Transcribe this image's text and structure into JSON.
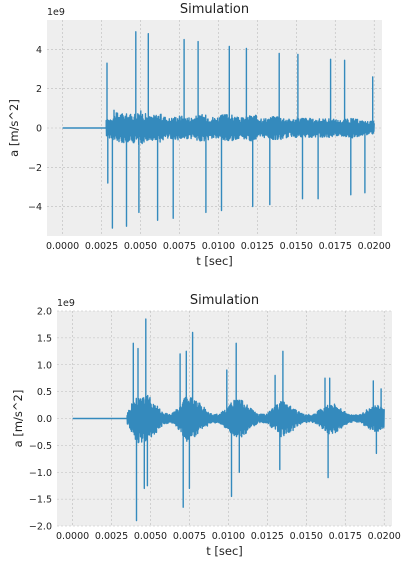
{
  "theme": {
    "plot_bg": "#eeeeee",
    "grid": "#bcbcbc",
    "line": "#348abd",
    "text": "#222222"
  },
  "chart_data": [
    {
      "type": "line",
      "title": "Simulation",
      "xlabel": "t [sec]",
      "ylabel": "a [m/s^2]",
      "y_offset_label": "1e9",
      "xlim": [
        -0.001,
        0.0205
      ],
      "ylim": [
        -5.5,
        5.5
      ],
      "xticks": [
        0.0,
        0.0025,
        0.005,
        0.0075,
        0.01,
        0.0125,
        0.015,
        0.0175,
        0.02
      ],
      "xtick_labels": [
        "0.0000",
        "0.0025",
        "0.0050",
        "0.0075",
        "0.0100",
        "0.0125",
        "0.0150",
        "0.0175",
        "0.0200"
      ],
      "yticks": [
        -4,
        -2,
        0,
        2,
        4
      ],
      "ytick_labels": [
        "−4",
        "−2",
        "0",
        "2",
        "4"
      ],
      "grid": true,
      "series": [
        {
          "units": "1e9 m/s^2",
          "baseline": {
            "x": [
              0.0,
              0.0028
            ],
            "y": [
              0,
              0
            ]
          },
          "envelope": [
            {
              "x": 0.0028,
              "amp": 0.4
            },
            {
              "x": 0.0035,
              "amp": 0.8
            },
            {
              "x": 0.0044,
              "amp": 0.7
            },
            {
              "x": 0.005,
              "amp": 0.9
            },
            {
              "x": 0.0056,
              "amp": 0.6
            },
            {
              "x": 0.0062,
              "amp": 0.75
            },
            {
              "x": 0.0068,
              "amp": 0.5
            },
            {
              "x": 0.0075,
              "amp": 0.65
            },
            {
              "x": 0.0082,
              "amp": 0.55
            },
            {
              "x": 0.009,
              "amp": 0.7
            },
            {
              "x": 0.0098,
              "amp": 0.55
            },
            {
              "x": 0.0106,
              "amp": 0.75
            },
            {
              "x": 0.0114,
              "amp": 0.5
            },
            {
              "x": 0.0122,
              "amp": 0.7
            },
            {
              "x": 0.013,
              "amp": 0.5
            },
            {
              "x": 0.0138,
              "amp": 0.65
            },
            {
              "x": 0.0146,
              "amp": 0.45
            },
            {
              "x": 0.0154,
              "amp": 0.55
            },
            {
              "x": 0.0162,
              "amp": 0.45
            },
            {
              "x": 0.017,
              "amp": 0.5
            },
            {
              "x": 0.0178,
              "amp": 0.4
            },
            {
              "x": 0.0186,
              "amp": 0.5
            },
            {
              "x": 0.0194,
              "amp": 0.35
            },
            {
              "x": 0.02,
              "amp": 0.35
            }
          ],
          "spikes": [
            {
              "x": 0.00285,
              "y": 3.3
            },
            {
              "x": 0.0029,
              "y": -2.8
            },
            {
              "x": 0.0032,
              "y": -5.1
            },
            {
              "x": 0.0033,
              "y": 0.9
            },
            {
              "x": 0.0041,
              "y": -5.0
            },
            {
              "x": 0.0047,
              "y": 4.9
            },
            {
              "x": 0.0049,
              "y": -4.3
            },
            {
              "x": 0.0055,
              "y": 4.8
            },
            {
              "x": 0.0061,
              "y": -4.7
            },
            {
              "x": 0.0071,
              "y": -4.6
            },
            {
              "x": 0.0078,
              "y": 4.5
            },
            {
              "x": 0.0087,
              "y": 4.4
            },
            {
              "x": 0.0092,
              "y": -4.3
            },
            {
              "x": 0.0102,
              "y": -4.2
            },
            {
              "x": 0.0107,
              "y": 4.15
            },
            {
              "x": 0.0118,
              "y": 4.05
            },
            {
              "x": 0.0122,
              "y": -4.0
            },
            {
              "x": 0.0133,
              "y": -3.9
            },
            {
              "x": 0.0139,
              "y": 3.8
            },
            {
              "x": 0.0151,
              "y": 3.75
            },
            {
              "x": 0.0154,
              "y": -3.6
            },
            {
              "x": 0.0164,
              "y": -3.6
            },
            {
              "x": 0.0172,
              "y": 3.5
            },
            {
              "x": 0.0181,
              "y": 3.45
            },
            {
              "x": 0.0185,
              "y": -3.4
            },
            {
              "x": 0.0194,
              "y": -3.3
            },
            {
              "x": 0.0199,
              "y": 2.6
            }
          ]
        }
      ]
    },
    {
      "type": "line",
      "title": "Simulation",
      "xlabel": "t [sec]",
      "ylabel": "a [m/s^2]",
      "y_offset_label": "1e9",
      "xlim": [
        -0.001,
        0.0205
      ],
      "ylim": [
        -2.0,
        2.0
      ],
      "xticks": [
        0.0,
        0.0025,
        0.005,
        0.0075,
        0.01,
        0.0125,
        0.015,
        0.0175,
        0.02
      ],
      "xtick_labels": [
        "0.0000",
        "0.0025",
        "0.0050",
        "0.0075",
        "0.0100",
        "0.0125",
        "0.0150",
        "0.0175",
        "0.0200"
      ],
      "yticks": [
        -2.0,
        -1.5,
        -1.0,
        -0.5,
        0.0,
        0.5,
        1.0,
        1.5,
        2.0
      ],
      "ytick_labels": [
        "−2.0",
        "−1.5",
        "−1.0",
        "−0.5",
        "0.0",
        "0.5",
        "1.0",
        "1.5",
        "2.0"
      ],
      "grid": true,
      "series": [
        {
          "units": "1e9 m/s^2",
          "baseline": {
            "x": [
              0.0,
              0.0035
            ],
            "y": [
              0,
              0
            ]
          },
          "envelope": [
            {
              "x": 0.0035,
              "amp": 0.1
            },
            {
              "x": 0.0038,
              "amp": 0.3
            },
            {
              "x": 0.0043,
              "amp": 0.5
            },
            {
              "x": 0.0048,
              "amp": 0.45
            },
            {
              "x": 0.0053,
              "amp": 0.3
            },
            {
              "x": 0.0058,
              "amp": 0.12
            },
            {
              "x": 0.0063,
              "amp": 0.08
            },
            {
              "x": 0.0068,
              "amp": 0.2
            },
            {
              "x": 0.0073,
              "amp": 0.45
            },
            {
              "x": 0.0078,
              "amp": 0.4
            },
            {
              "x": 0.0083,
              "amp": 0.25
            },
            {
              "x": 0.0088,
              "amp": 0.1
            },
            {
              "x": 0.0094,
              "amp": 0.08
            },
            {
              "x": 0.0099,
              "amp": 0.2
            },
            {
              "x": 0.0104,
              "amp": 0.4
            },
            {
              "x": 0.0109,
              "amp": 0.35
            },
            {
              "x": 0.0114,
              "amp": 0.2
            },
            {
              "x": 0.0119,
              "amp": 0.08
            },
            {
              "x": 0.0124,
              "amp": 0.08
            },
            {
              "x": 0.0129,
              "amp": 0.2
            },
            {
              "x": 0.0134,
              "amp": 0.35
            },
            {
              "x": 0.0139,
              "amp": 0.3
            },
            {
              "x": 0.0144,
              "amp": 0.15
            },
            {
              "x": 0.0149,
              "amp": 0.07
            },
            {
              "x": 0.0155,
              "amp": 0.08
            },
            {
              "x": 0.016,
              "amp": 0.2
            },
            {
              "x": 0.0165,
              "amp": 0.3
            },
            {
              "x": 0.017,
              "amp": 0.25
            },
            {
              "x": 0.0175,
              "amp": 0.12
            },
            {
              "x": 0.018,
              "amp": 0.06
            },
            {
              "x": 0.0185,
              "amp": 0.08
            },
            {
              "x": 0.019,
              "amp": 0.2
            },
            {
              "x": 0.0195,
              "amp": 0.25
            },
            {
              "x": 0.02,
              "amp": 0.2
            }
          ],
          "spikes": [
            {
              "x": 0.0039,
              "y": 1.4
            },
            {
              "x": 0.0041,
              "y": -1.9
            },
            {
              "x": 0.0042,
              "y": 1.3
            },
            {
              "x": 0.0046,
              "y": -1.3
            },
            {
              "x": 0.0047,
              "y": 1.85
            },
            {
              "x": 0.0048,
              "y": -1.25
            },
            {
              "x": 0.0069,
              "y": 1.2
            },
            {
              "x": 0.0071,
              "y": -1.65
            },
            {
              "x": 0.0073,
              "y": 1.25
            },
            {
              "x": 0.0075,
              "y": -1.3
            },
            {
              "x": 0.0077,
              "y": 1.6
            },
            {
              "x": 0.0099,
              "y": 0.9
            },
            {
              "x": 0.0102,
              "y": -1.45
            },
            {
              "x": 0.0105,
              "y": 1.4
            },
            {
              "x": 0.0107,
              "y": -1.0
            },
            {
              "x": 0.013,
              "y": 0.8
            },
            {
              "x": 0.0133,
              "y": -0.95
            },
            {
              "x": 0.0135,
              "y": 1.25
            },
            {
              "x": 0.0162,
              "y": 0.75
            },
            {
              "x": 0.0164,
              "y": -1.1
            },
            {
              "x": 0.0165,
              "y": 0.75
            },
            {
              "x": 0.0193,
              "y": 0.7
            },
            {
              "x": 0.0195,
              "y": -0.65
            },
            {
              "x": 0.0198,
              "y": 0.55
            }
          ]
        }
      ]
    }
  ]
}
